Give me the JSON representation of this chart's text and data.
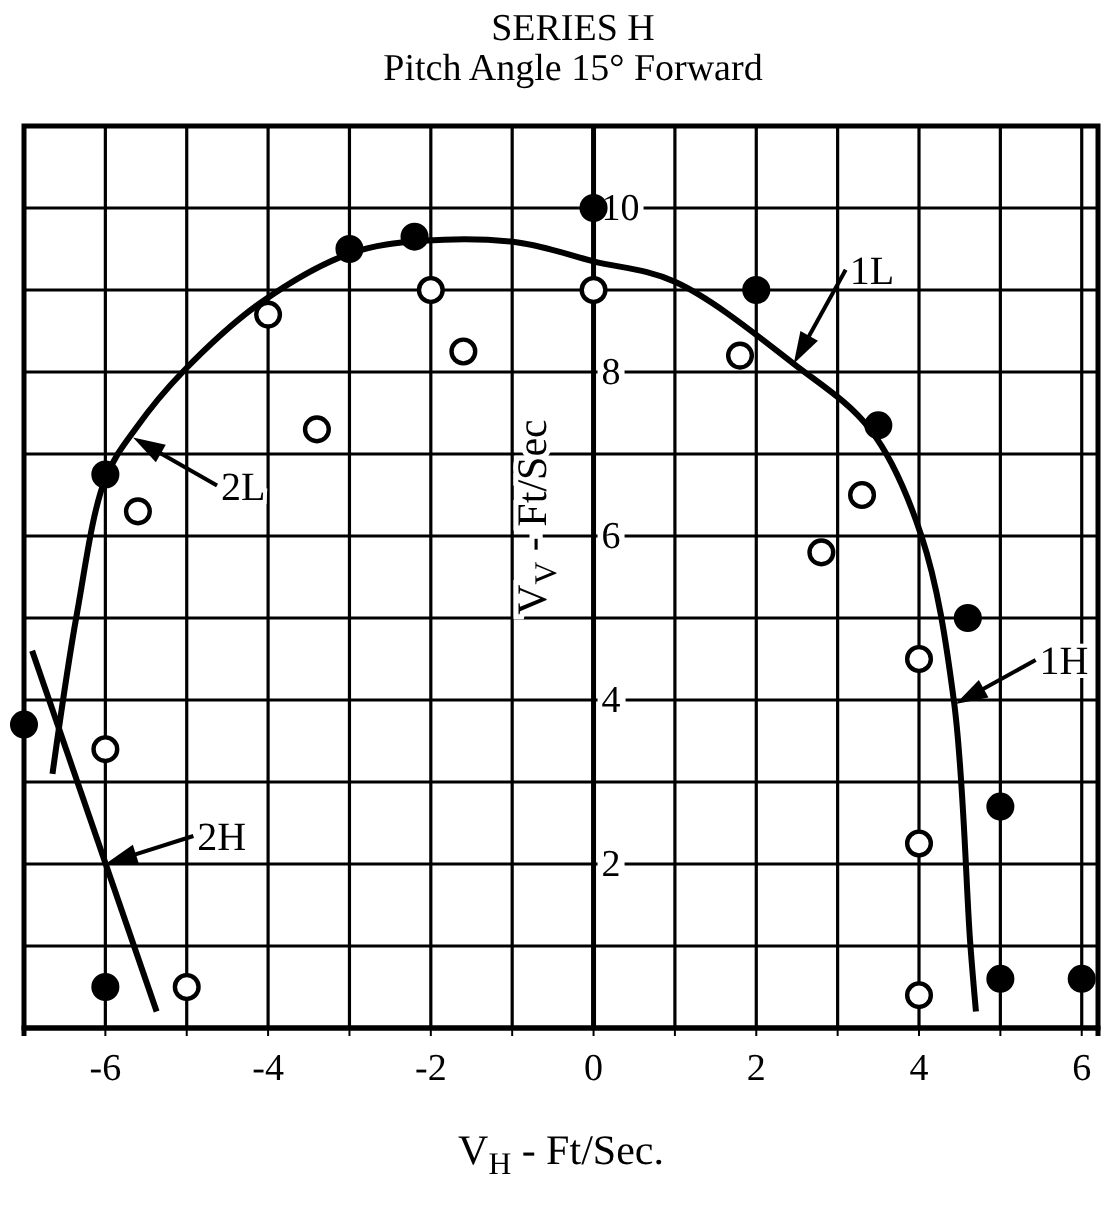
{
  "chart_data": {
    "type": "scatter",
    "title": "SERIES H",
    "subtitle": "Pitch Angle 15° Forward",
    "xlabel": "V$_{H}$ - Ft/Sec.",
    "ylabel": "V$_{V}$ - Ft/Sec",
    "xlim": [
      -7,
      6.2
    ],
    "ylim": [
      0,
      11
    ],
    "xticks": [
      {
        "value": -7,
        "label": null
      },
      -6,
      {
        "value": -5,
        "label": null
      },
      -4,
      {
        "value": -3,
        "label": null
      },
      -2,
      {
        "value": -1,
        "label": null
      },
      0,
      {
        "value": 1,
        "label": null
      },
      2,
      {
        "value": 3,
        "label": null
      },
      4,
      {
        "value": 5,
        "label": null
      },
      6
    ],
    "yticks": [
      {
        "value": 0,
        "label": null
      },
      {
        "value": 1,
        "label": null
      },
      2,
      {
        "value": 3,
        "label": null
      },
      4,
      {
        "value": 5,
        "label": null
      },
      6,
      {
        "value": 7,
        "label": null
      },
      8,
      {
        "value": 9,
        "label": null
      },
      10,
      {
        "value": 11,
        "label": null
      }
    ],
    "grid": true,
    "marker": "circle",
    "series": [
      {
        "type": "scatter",
        "color": "#000000",
        "x": [
          -7,
          -6,
          -3,
          -2.2,
          0,
          2,
          3.5,
          4.6,
          5,
          5,
          6,
          -6
        ],
        "values": [
          3.7,
          6.75,
          9.5,
          9.65,
          10,
          9,
          7.35,
          5,
          2.7,
          0.6,
          0.6,
          0.5
        ]
      },
      {
        "type": "scatter",
        "color": "#ffffff",
        "x": [
          -6,
          -5.6,
          -4,
          -3.4,
          -2,
          -1.6,
          0,
          1.8,
          3.3,
          2.8,
          4,
          4,
          4,
          -5
        ],
        "values": [
          3.4,
          6.3,
          8.7,
          7.3,
          9,
          8.25,
          9,
          8.2,
          6.5,
          5.8,
          4.5,
          2.25,
          0.4,
          0.5
        ]
      },
      {
        "type": "line",
        "color": "#000000",
        "marker": "none",
        "line_style": "solid",
        "x": [
          -6.65,
          -6.35,
          -6,
          -5.62,
          -5.05,
          -4.07,
          -2.98,
          -2.1,
          -0.93,
          0,
          1,
          2.46,
          3.4,
          4.03,
          4.43,
          4.63,
          4.7
        ],
        "values": [
          3.1,
          5.05,
          6.7,
          7.32,
          8,
          8.86,
          9.45,
          9.6,
          9.58,
          9.35,
          9.1,
          8.1,
          7.3,
          6,
          3.98,
          1.03,
          0.2
        ]
      },
      {
        "type": "line",
        "color": "#000000",
        "marker": "none",
        "line_style": "solid",
        "x": [
          -6.9,
          -5.37
        ],
        "values": [
          4.6,
          0.2
        ]
      }
    ],
    "annotations": [
      {
        "text": "1L",
        "x": 2.46,
        "y": 8.1
      },
      {
        "text": "2L",
        "x": -5.66,
        "y": 7.2
      },
      {
        "text": "1H",
        "x": 4.45,
        "y": 3.95
      },
      {
        "text": "2H",
        "x": -6,
        "y": 2
      }
    ]
  }
}
